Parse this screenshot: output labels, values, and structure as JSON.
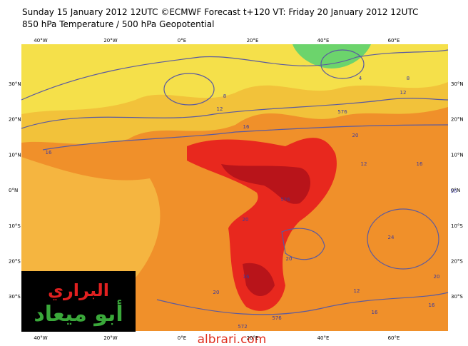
{
  "header": {
    "line1": "Sunday 15 January 2012 12UTC ©ECMWF Forecast t+120 VT: Friday 20 January 2012 12UTC",
    "line2": "850 hPa Temperature / 500 hPa Geopotential"
  },
  "axes": {
    "lon_labels": [
      "40°W",
      "20°W",
      "0°E",
      "20°E",
      "40°E",
      "60°E"
    ],
    "lat_labels": [
      "30°N",
      "20°N",
      "10°N",
      "0°N",
      "10°S",
      "20°S",
      "30°S"
    ]
  },
  "contour_labels": [
    "576",
    "4",
    "8",
    "12",
    "16",
    "20",
    "16",
    "12",
    "576",
    "20",
    "16",
    "16",
    "20",
    "20",
    "24",
    "20",
    "16",
    "16",
    "12",
    "16",
    "572",
    "576",
    "8",
    "12"
  ],
  "logo": {
    "top": "البراري",
    "bottom": "أبو ميعاد"
  },
  "watermark": "albrari.com"
}
